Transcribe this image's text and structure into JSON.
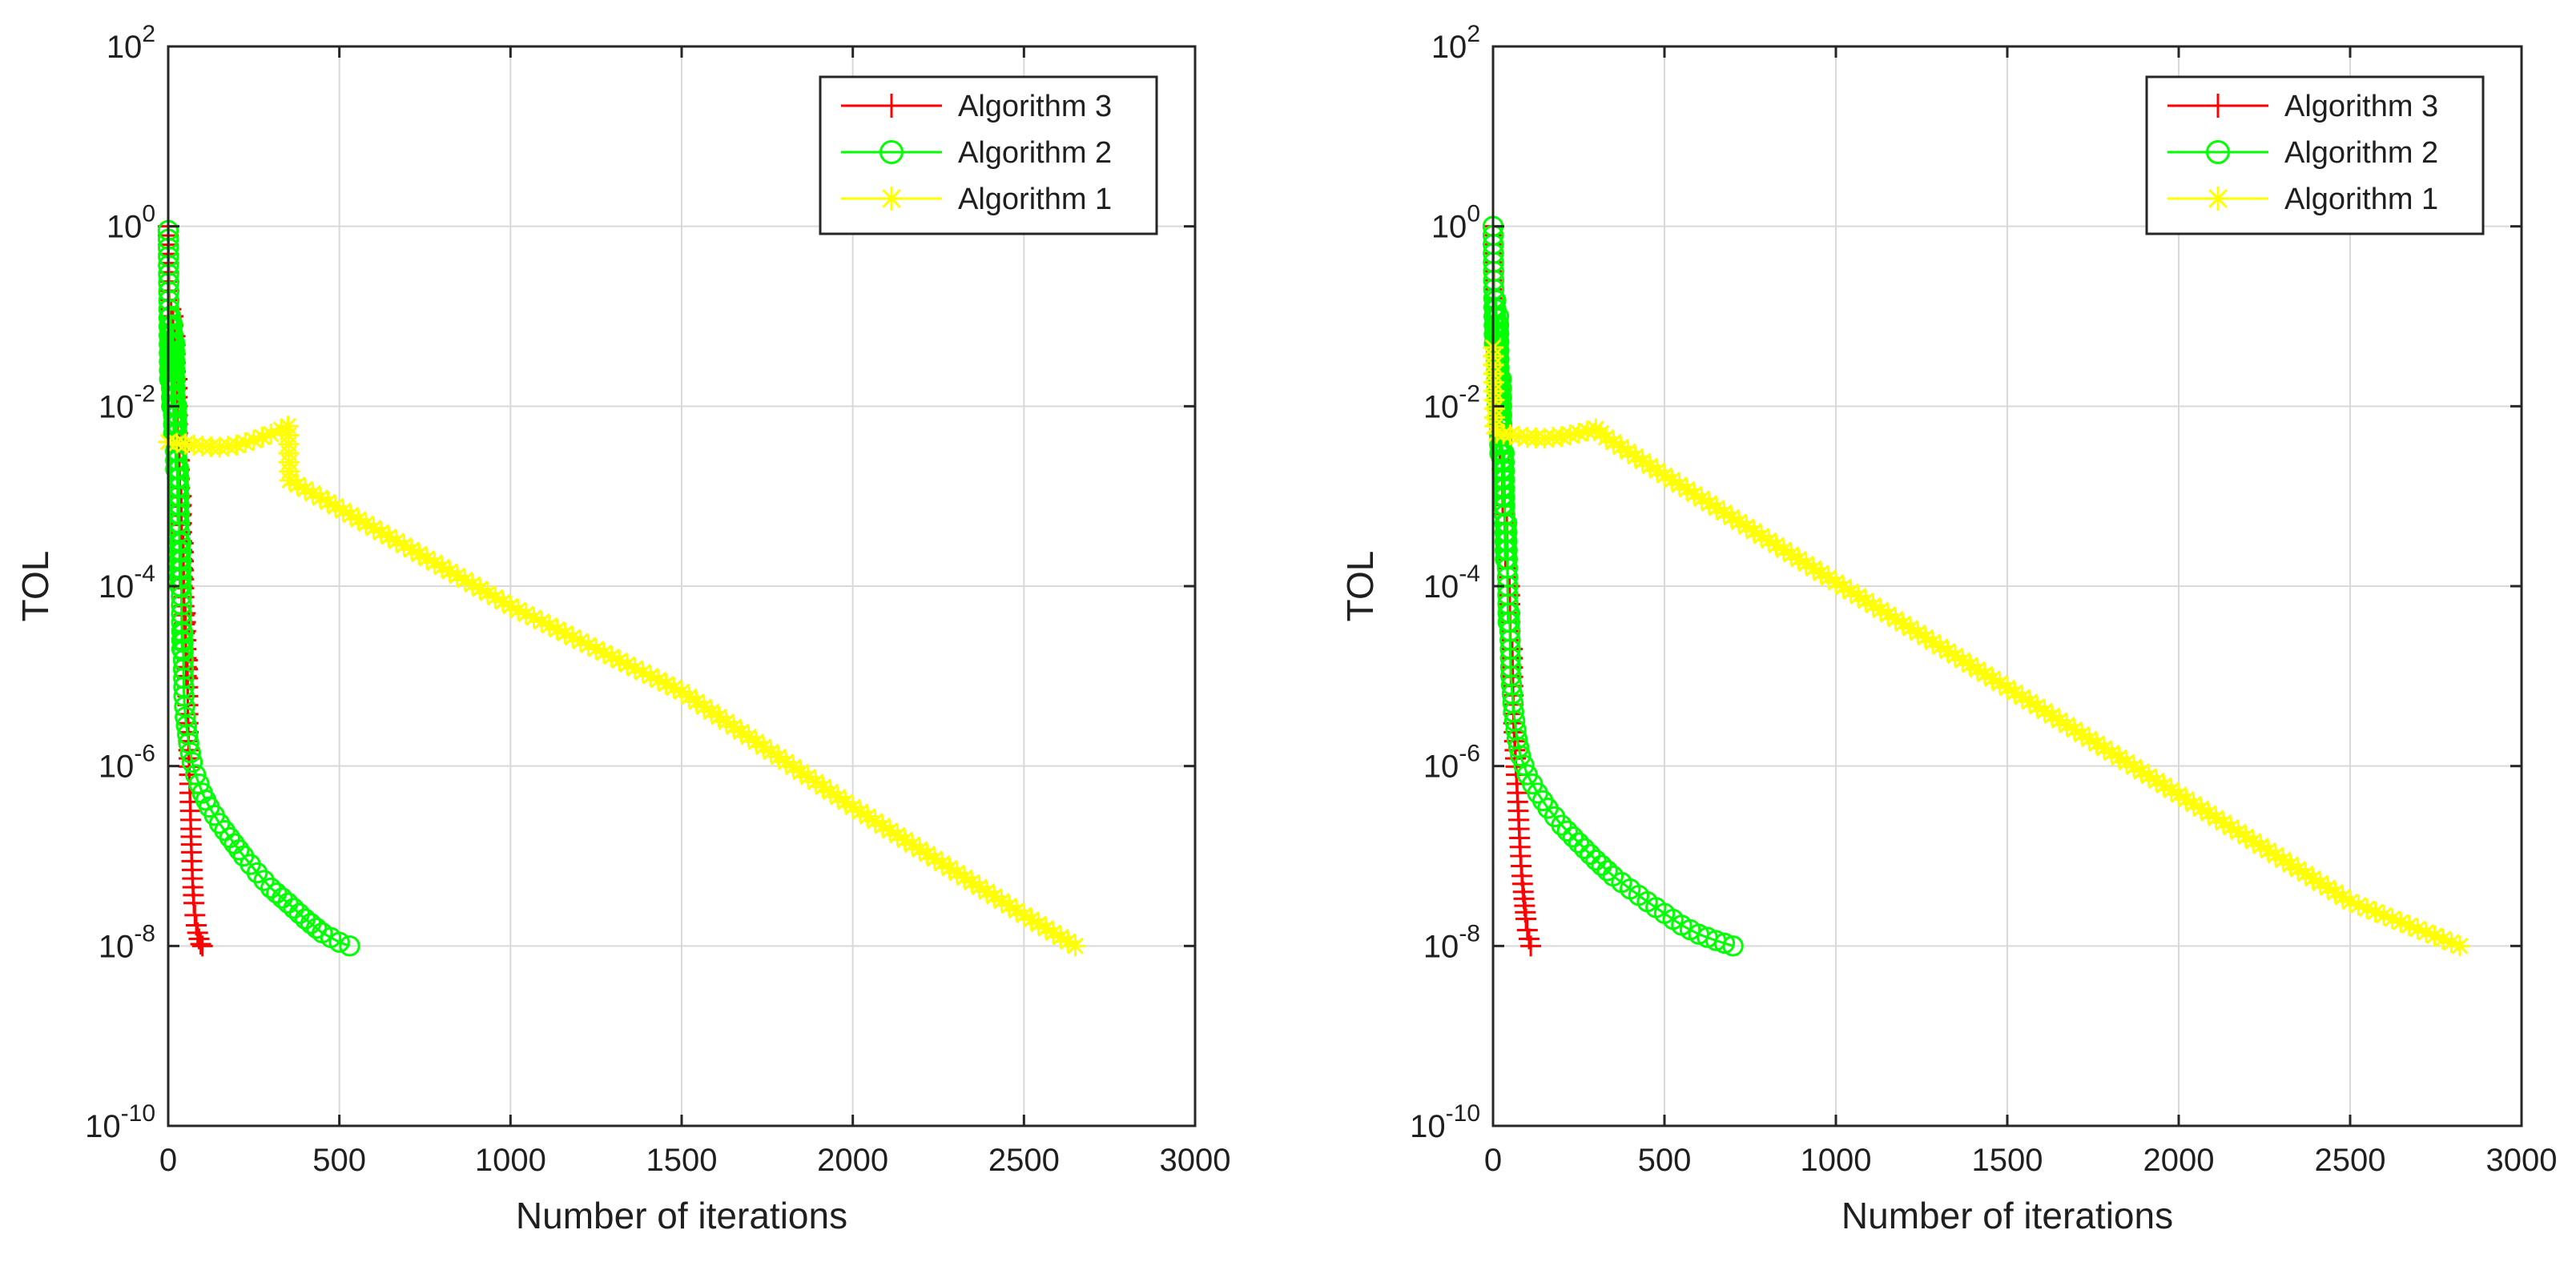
{
  "colors": {
    "background": "#ffffff",
    "axis": "#262626",
    "grid": "#d9d9d9",
    "legend_border": "#262626"
  },
  "chart_data": [
    {
      "type": "line",
      "title": "",
      "xlabel": "Number of iterations",
      "ylabel": "TOL",
      "yscale": "log",
      "xlim": [
        0,
        3000
      ],
      "ylim": [
        1e-10,
        100
      ],
      "grid": true,
      "legend_position": "top-right",
      "x_tick_labels": [
        "0",
        "500",
        "1000",
        "1500",
        "2000",
        "2500",
        "3000"
      ],
      "y_tick_labels": [
        {
          "base": "10",
          "exp": "-10"
        },
        {
          "base": "10",
          "exp": "-8"
        },
        {
          "base": "10",
          "exp": "-6"
        },
        {
          "base": "10",
          "exp": "-4"
        },
        {
          "base": "10",
          "exp": "-2"
        },
        {
          "base": "10",
          "exp": "0"
        },
        {
          "base": "10",
          "exp": "2"
        }
      ],
      "series": [
        {
          "name": "Algorithm  3",
          "color": "#ff0000",
          "marker": "plus",
          "points": [
            [
              0,
              1.0
            ],
            [
              3,
              0.12
            ],
            [
              6,
              0.03
            ],
            [
              8,
              0.12
            ],
            [
              11,
              0.02
            ],
            [
              14,
              0.1
            ],
            [
              17,
              0.008
            ],
            [
              20,
              0.06
            ],
            [
              23,
              0.004
            ],
            [
              26,
              0.02
            ],
            [
              29,
              0.001
            ],
            [
              32,
              0.004
            ],
            [
              35,
              0.0003
            ],
            [
              38,
              0.001
            ],
            [
              41,
              0.0001
            ],
            [
              44,
              0.0003
            ],
            [
              47,
              3e-05
            ],
            [
              50,
              5e-05
            ],
            [
              53,
              1e-05
            ],
            [
              56,
              1.5e-05
            ],
            [
              58,
              3e-06
            ],
            [
              60,
              1.5e-06
            ],
            [
              62,
              8e-07
            ],
            [
              64,
              4e-07
            ],
            [
              66,
              2e-07
            ],
            [
              68,
              1.1e-07
            ],
            [
              70,
              7e-08
            ],
            [
              72,
              4.5e-08
            ],
            [
              75,
              3e-08
            ],
            [
              78,
              2.2e-08
            ],
            [
              82,
              1.7e-08
            ],
            [
              86,
              1.4e-08
            ],
            [
              90,
              1.2e-08
            ],
            [
              95,
              1.05e-08
            ],
            [
              100,
              1e-08
            ]
          ]
        },
        {
          "name": "Algorithm 2",
          "color": "#00ff00",
          "marker": "circle",
          "points": [
            [
              0,
              0.9
            ],
            [
              4,
              0.02
            ],
            [
              7,
              0.1
            ],
            [
              10,
              0.01
            ],
            [
              13,
              0.08
            ],
            [
              16,
              0.005
            ],
            [
              19,
              0.05
            ],
            [
              22,
              0.002
            ],
            [
              25,
              0.01
            ],
            [
              28,
              0.0005
            ],
            [
              31,
              0.002
            ],
            [
              34,
              0.0001
            ],
            [
              37,
              0.0003
            ],
            [
              40,
              2e-05
            ],
            [
              43,
              3e-05
            ],
            [
              46,
              6e-06
            ],
            [
              50,
              3.5e-06
            ],
            [
              60,
              1.8e-06
            ],
            [
              70,
              1.1e-06
            ],
            [
              80,
              8e-07
            ],
            [
              100,
              5e-07
            ],
            [
              120,
              3.5e-07
            ],
            [
              150,
              2.3e-07
            ],
            [
              180,
              1.6e-07
            ],
            [
              220,
              1e-07
            ],
            [
              260,
              6.5e-08
            ],
            [
              300,
              4.4e-08
            ],
            [
              350,
              3e-08
            ],
            [
              400,
              2e-08
            ],
            [
              450,
              1.4e-08
            ],
            [
              500,
              1.1e-08
            ],
            [
              530,
              1e-08
            ]
          ]
        },
        {
          "name": "Algorithm 1",
          "color": "#ffff00",
          "marker": "star",
          "points": [
            [
              0,
              0.004
            ],
            [
              50,
              0.0038
            ],
            [
              100,
              0.0036
            ],
            [
              150,
              0.0035
            ],
            [
              200,
              0.0037
            ],
            [
              250,
              0.0042
            ],
            [
              300,
              0.0049
            ],
            [
              330,
              0.0055
            ],
            [
              350,
              0.006
            ],
            [
              355,
              0.0015
            ],
            [
              400,
              0.0012
            ],
            [
              1000,
              6e-05
            ],
            [
              1500,
              6.7e-06
            ],
            [
              2000,
              3.5e-07
            ],
            [
              2500,
              2.2e-08
            ],
            [
              2650,
              1e-08
            ]
          ]
        }
      ]
    },
    {
      "type": "line",
      "title": "",
      "xlabel": "Number of iterations",
      "ylabel": "TOL",
      "yscale": "log",
      "xlim": [
        0,
        3000
      ],
      "ylim": [
        1e-10,
        100
      ],
      "grid": true,
      "legend_position": "top-right",
      "x_tick_labels": [
        "0",
        "500",
        "1000",
        "1500",
        "2000",
        "2500",
        "3000"
      ],
      "y_tick_labels": [
        {
          "base": "10",
          "exp": "-10"
        },
        {
          "base": "10",
          "exp": "-8"
        },
        {
          "base": "10",
          "exp": "-6"
        },
        {
          "base": "10",
          "exp": "-4"
        },
        {
          "base": "10",
          "exp": "-2"
        },
        {
          "base": "10",
          "exp": "0"
        },
        {
          "base": "10",
          "exp": "2"
        }
      ],
      "series": [
        {
          "name": "Algorithm  3",
          "color": "#ff0000",
          "marker": "plus",
          "points": [
            [
              0,
              1.0
            ],
            [
              4,
              0.05
            ],
            [
              8,
              0.1
            ],
            [
              12,
              0.01
            ],
            [
              16,
              0.05
            ],
            [
              20,
              0.003
            ],
            [
              24,
              0.01
            ],
            [
              28,
              0.0008
            ],
            [
              32,
              0.002
            ],
            [
              36,
              0.0002
            ],
            [
              40,
              0.0005
            ],
            [
              44,
              5e-05
            ],
            [
              48,
              0.0001
            ],
            [
              52,
              1e-05
            ],
            [
              56,
              2e-05
            ],
            [
              60,
              3e-06
            ],
            [
              64,
              1.5e-06
            ],
            [
              68,
              8e-07
            ],
            [
              72,
              4e-07
            ],
            [
              76,
              2e-07
            ],
            [
              80,
              1e-07
            ],
            [
              84,
              6e-08
            ],
            [
              88,
              4e-08
            ],
            [
              92,
              2.8e-08
            ],
            [
              96,
              2e-08
            ],
            [
              100,
              1.5e-08
            ],
            [
              105,
              1.2e-08
            ],
            [
              110,
              1e-08
            ]
          ]
        },
        {
          "name": "Algorithm 2",
          "color": "#00ff00",
          "marker": "circle",
          "points": [
            [
              0,
              1.0
            ],
            [
              4,
              0.05
            ],
            [
              8,
              0.15
            ],
            [
              12,
              0.01
            ],
            [
              16,
              0.1
            ],
            [
              20,
              0.003
            ],
            [
              24,
              0.02
            ],
            [
              28,
              0.0008
            ],
            [
              32,
              0.003
            ],
            [
              36,
              0.0002
            ],
            [
              40,
              0.0005
            ],
            [
              44,
              4e-05
            ],
            [
              48,
              5e-05
            ],
            [
              52,
              1e-05
            ],
            [
              60,
              4e-06
            ],
            [
              70,
              2e-06
            ],
            [
              80,
              1.3e-06
            ],
            [
              100,
              8e-07
            ],
            [
              130,
              5e-07
            ],
            [
              160,
              3.4e-07
            ],
            [
              200,
              2.2e-07
            ],
            [
              250,
              1.4e-07
            ],
            [
              300,
              9e-08
            ],
            [
              350,
              6e-08
            ],
            [
              400,
              4.3e-08
            ],
            [
              450,
              3.1e-08
            ],
            [
              500,
              2.3e-08
            ],
            [
              550,
              1.7e-08
            ],
            [
              600,
              1.35e-08
            ],
            [
              650,
              1.15e-08
            ],
            [
              700,
              1e-08
            ]
          ]
        },
        {
          "name": "Algorithm 1",
          "color": "#ffff00",
          "marker": "star",
          "points": [
            [
              0,
              0.045
            ],
            [
              5,
              0.006
            ],
            [
              10,
              0.005
            ],
            [
              50,
              0.0048
            ],
            [
              100,
              0.0045
            ],
            [
              150,
              0.0044
            ],
            [
              200,
              0.0046
            ],
            [
              250,
              0.005
            ],
            [
              300,
              0.0056
            ],
            [
              330,
              0.0045
            ],
            [
              500,
              0.0017
            ],
            [
              1000,
              0.00011
            ],
            [
              1500,
              7.4e-06
            ],
            [
              2000,
              4.8e-07
            ],
            [
              2500,
              3.1e-08
            ],
            [
              2820,
              1e-08
            ]
          ]
        }
      ]
    }
  ]
}
